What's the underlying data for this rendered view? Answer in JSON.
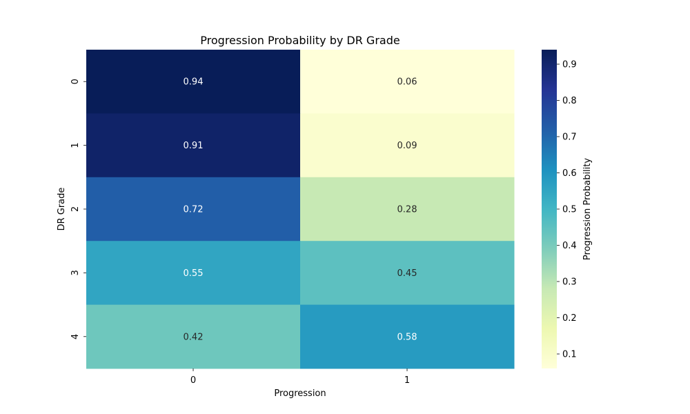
{
  "chart_data": {
    "type": "heatmap",
    "title": "Progression Probability by DR Grade",
    "xlabel": "Progression",
    "ylabel": "DR Grade",
    "x_categories": [
      "0",
      "1"
    ],
    "y_categories": [
      "0",
      "1",
      "2",
      "3",
      "4"
    ],
    "values": [
      [
        0.94,
        0.06
      ],
      [
        0.91,
        0.09
      ],
      [
        0.72,
        0.28
      ],
      [
        0.55,
        0.45
      ],
      [
        0.42,
        0.58
      ]
    ],
    "annotations": [
      [
        "0.94",
        "0.06"
      ],
      [
        "0.91",
        "0.09"
      ],
      [
        "0.72",
        "0.28"
      ],
      [
        "0.55",
        "0.45"
      ],
      [
        "0.42",
        "0.58"
      ]
    ],
    "colorbar": {
      "label": "Progression Probability",
      "range": [
        0.06,
        0.94
      ],
      "ticks": [
        "0.1",
        "0.2",
        "0.3",
        "0.4",
        "0.5",
        "0.6",
        "0.7",
        "0.8",
        "0.9"
      ],
      "colormap": "YlGnBu"
    },
    "colors": {
      "light_text": "#ffffff",
      "dark_text": "#262626"
    }
  }
}
